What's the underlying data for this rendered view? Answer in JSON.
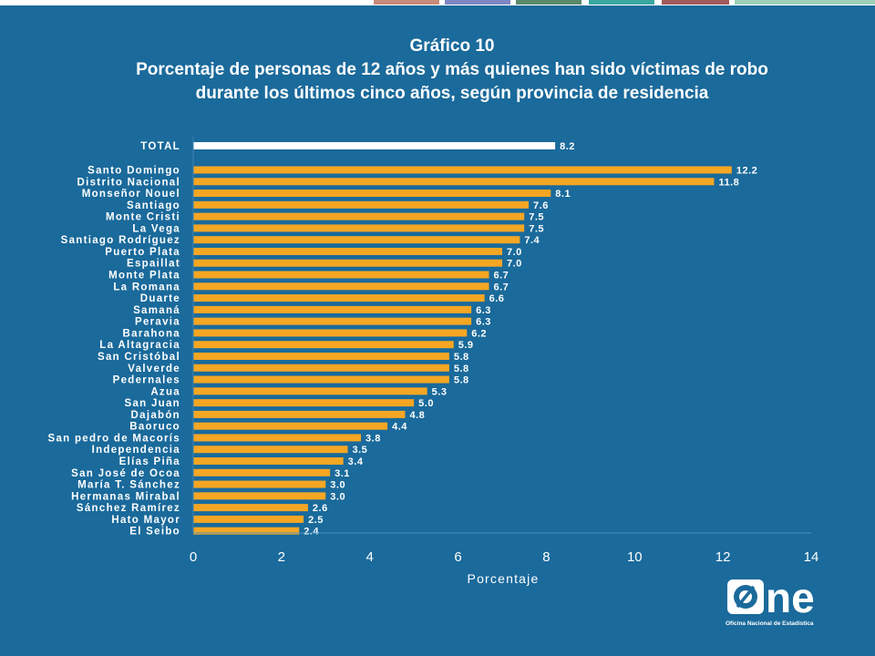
{
  "header": {
    "figure_label": "Gráfico 10",
    "title": "Porcentaje de personas de 12 años y más quienes han sido víctimas de robo durante los últimos cinco años, según provincia de residencia"
  },
  "logo": {
    "wordmark": "ne",
    "caption": "Oficina Nacional de Estadística"
  },
  "colors": {
    "background": "#1a6a9b",
    "bar": "#f5a623",
    "total_bar": "#ffffff",
    "text": "#ffffff"
  },
  "chart_data": {
    "type": "bar",
    "orientation": "horizontal",
    "title": "Porcentaje de personas de 12 años y más quienes han sido víctimas de robo durante los últimos cinco años, según provincia de residencia",
    "xlabel": "Porcentaje",
    "ylabel": "",
    "xlim": [
      0,
      14
    ],
    "xticks": [
      0,
      2,
      4,
      6,
      8,
      10,
      12,
      14
    ],
    "grid": false,
    "total": {
      "category": "TOTAL",
      "value": 8.2
    },
    "categories": [
      "Santo Domingo",
      "Distrito Nacional",
      "Monseñor Nouel",
      "Santiago",
      "Monte Cristi",
      "La Vega",
      "Santiago Rodríguez",
      "Puerto Plata",
      "Espaillat",
      "Monte Plata",
      "La Romana",
      "Duarte",
      "Samaná",
      "Peravia",
      "Barahona",
      "La Altagracia",
      "San Cristóbal",
      "Valverde",
      "Pedernales",
      "Azua",
      "San Juan",
      "Dajabón",
      "Baoruco",
      "San pedro de Macorís",
      "Independencia",
      "Elías Piña",
      "San José de Ocoa",
      "María T. Sánchez",
      "Hermanas Mirabal",
      "Sánchez Ramírez",
      "Hato Mayor",
      "El Seibo"
    ],
    "values": [
      12.2,
      11.8,
      8.1,
      7.6,
      7.5,
      7.5,
      7.4,
      7.0,
      7.0,
      6.7,
      6.7,
      6.6,
      6.3,
      6.3,
      6.2,
      5.9,
      5.8,
      5.8,
      5.8,
      5.3,
      5.0,
      4.8,
      4.4,
      3.8,
      3.5,
      3.4,
      3.1,
      3.0,
      3.0,
      2.6,
      2.5,
      2.4
    ]
  }
}
